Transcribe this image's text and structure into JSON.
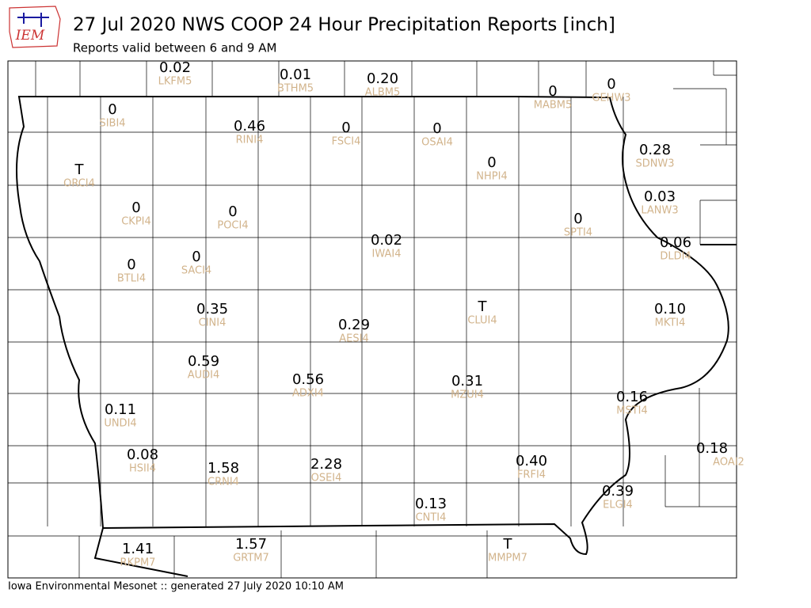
{
  "header": {
    "logo": "IEM",
    "title": "27 Jul 2020 NWS COOP 24 Hour Precipitation Reports [inch]",
    "subtitle": "Reports valid between 6 and 9 AM"
  },
  "stations": [
    {
      "value": "0.02",
      "id": "LKFM5"
    },
    {
      "value": "0.01",
      "id": "BTHM5"
    },
    {
      "value": "0.20",
      "id": "ALBM5"
    },
    {
      "value": "0",
      "id": "MABM5"
    },
    {
      "value": "0",
      "id": "GEHW3"
    },
    {
      "value": "0",
      "id": "SIBI4"
    },
    {
      "value": "0.46",
      "id": "RINI4"
    },
    {
      "value": "0",
      "id": "FSCI4"
    },
    {
      "value": "0",
      "id": "OSAI4"
    },
    {
      "value": "0.28",
      "id": "SDNW3"
    },
    {
      "value": "0",
      "id": "NHPI4"
    },
    {
      "value": "T",
      "id": "ORCI4"
    },
    {
      "value": "0.03",
      "id": "LANW3"
    },
    {
      "value": "0",
      "id": "CKPI4"
    },
    {
      "value": "0",
      "id": "POCI4"
    },
    {
      "value": "0",
      "id": "SPTI4"
    },
    {
      "value": "0.02",
      "id": "IWAI4"
    },
    {
      "value": "0.06",
      "id": "DLDI4"
    },
    {
      "value": "0",
      "id": "BTLI4"
    },
    {
      "value": "0",
      "id": "SACI4"
    },
    {
      "value": "T",
      "id": "CLUI4"
    },
    {
      "value": "0.35",
      "id": "CINI4"
    },
    {
      "value": "0.10",
      "id": "MKTI4"
    },
    {
      "value": "0.29",
      "id": "AESI4"
    },
    {
      "value": "0.59",
      "id": "AUDI4"
    },
    {
      "value": "0.56",
      "id": "ADXI4"
    },
    {
      "value": "0.31",
      "id": "MZUI4"
    },
    {
      "value": "0.16",
      "id": "MSTI4"
    },
    {
      "value": "0.11",
      "id": "UNDI4"
    },
    {
      "value": "0.18",
      "id": "AOAI2"
    },
    {
      "value": "0.08",
      "id": "HSII4"
    },
    {
      "value": "1.58",
      "id": "CRNI4"
    },
    {
      "value": "2.28",
      "id": "OSEI4"
    },
    {
      "value": "0.40",
      "id": "FRFI4"
    },
    {
      "value": "0.39",
      "id": "ELGI4"
    },
    {
      "value": "0.13",
      "id": "CNTI4"
    },
    {
      "value": "1.41",
      "id": "RKPM7"
    },
    {
      "value": "1.57",
      "id": "GRTM7"
    },
    {
      "value": "T",
      "id": "MMPM7"
    }
  ],
  "footer": "Iowa Environmental Mesonet :: generated 27 July 2020 10:10 AM"
}
